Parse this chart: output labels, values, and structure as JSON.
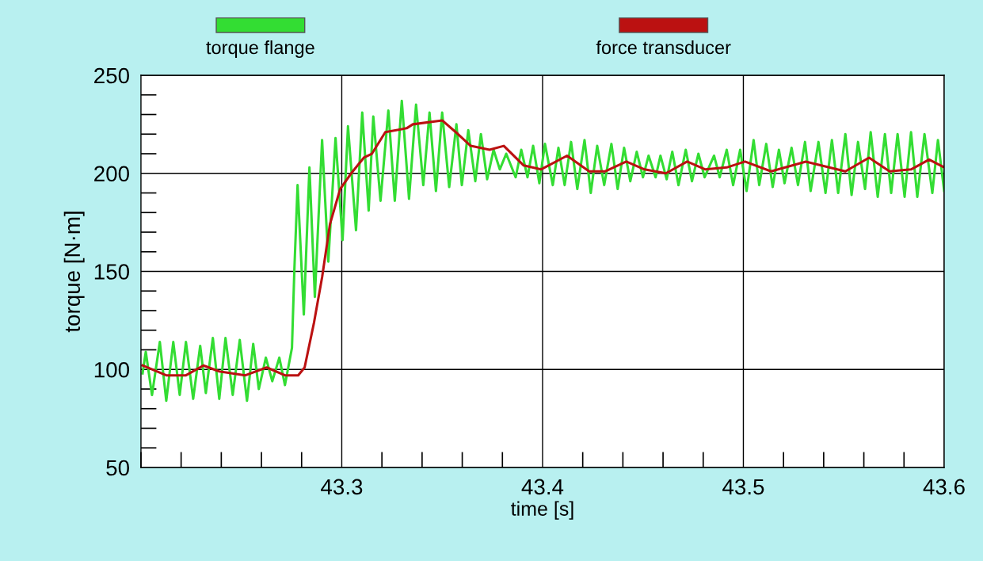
{
  "chart_data": {
    "type": "line",
    "xlabel": "time [s]",
    "ylabel": "torque [N·m]",
    "xlim": [
      43.2,
      43.6
    ],
    "xticks": [
      43.3,
      43.4,
      43.5,
      43.6
    ],
    "ylim": [
      50,
      250
    ],
    "yticks": [
      50,
      100,
      150,
      200,
      250
    ],
    "grid": true,
    "legend": "top",
    "line_style": "solid",
    "marker": "none",
    "series": [
      {
        "name": "torque flange",
        "color": "#33dd33",
        "x": [
          43.2008,
          43.2024,
          43.2055,
          43.2094,
          43.2126,
          43.2161,
          43.2193,
          43.2224,
          43.226,
          43.2295,
          43.2323,
          43.2358,
          43.239,
          43.2421,
          43.2457,
          43.2492,
          43.2528,
          43.2559,
          43.2587,
          43.2622,
          43.2654,
          43.2689,
          43.2717,
          43.2752,
          43.2764,
          43.278,
          43.2811,
          43.2839,
          43.2866,
          43.2902,
          43.2933,
          43.2969,
          43.3004,
          43.3031,
          43.3071,
          43.3102,
          43.3134,
          43.3157,
          43.3193,
          43.3232,
          43.3264,
          43.3299,
          43.3335,
          43.337,
          43.3406,
          43.3437,
          43.3469,
          43.35,
          43.3535,
          43.3571,
          43.3598,
          43.363,
          43.3665,
          43.3693,
          43.3724,
          43.3756,
          43.3787,
          43.3819,
          43.3866,
          43.3894,
          43.3925,
          43.3953,
          43.3984,
          43.4012,
          43.4051,
          43.4079,
          43.411,
          43.4142,
          43.4173,
          43.4209,
          43.424,
          43.4272,
          43.4307,
          43.4343,
          43.4374,
          43.4406,
          43.4437,
          43.4469,
          43.45,
          43.4528,
          43.4563,
          43.4587,
          43.4618,
          43.4646,
          43.4677,
          43.4713,
          43.4744,
          43.4776,
          43.4807,
          43.4854,
          43.4882,
          43.4917,
          43.4949,
          43.4984,
          43.5016,
          43.5051,
          43.5079,
          43.5114,
          43.5146,
          43.5177,
          43.5205,
          43.524,
          43.5272,
          43.5307,
          43.5335,
          43.5374,
          43.5409,
          43.5441,
          43.5472,
          43.5508,
          43.5539,
          43.5571,
          43.5606,
          43.5634,
          43.5669,
          43.5705,
          43.5736,
          43.5768,
          43.5803,
          43.5835,
          43.5866,
          43.5902,
          43.5941,
          43.5969,
          43.6
        ],
        "values": [
          98,
          109,
          87,
          114,
          84,
          114,
          87,
          114,
          85,
          112,
          88,
          116,
          85,
          116,
          87,
          115,
          84,
          113,
          90,
          106,
          94,
          106,
          92,
          111,
          151,
          194,
          128,
          203,
          137,
          217,
          155,
          218,
          166,
          224,
          171,
          231,
          181,
          229,
          186,
          232,
          186,
          237,
          187,
          235,
          194,
          231,
          191,
          231,
          193,
          225,
          194,
          222,
          196,
          220,
          197,
          212,
          202,
          210,
          198,
          212,
          198,
          214,
          195,
          215,
          194,
          213,
          194,
          216,
          192,
          217,
          190,
          214,
          194,
          215,
          192,
          213,
          196,
          211,
          198,
          209,
          198,
          209,
          197,
          211,
          194,
          212,
          196,
          210,
          198,
          209,
          198,
          212,
          194,
          212,
          191,
          217,
          194,
          215,
          193,
          212,
          195,
          213,
          194,
          216,
          191,
          216,
          190,
          217,
          190,
          220,
          189,
          216,
          192,
          221,
          188,
          220,
          190,
          220,
          188,
          221,
          188,
          220,
          190,
          217,
          191
        ]
      },
      {
        "name": "force transducer",
        "color": "#bb1111",
        "x": [
          43.2008,
          43.2126,
          43.2224,
          43.2311,
          43.239,
          43.252,
          43.2626,
          43.2717,
          43.2783,
          43.2815,
          43.2862,
          43.2902,
          43.2941,
          43.2992,
          43.3047,
          43.311,
          43.315,
          43.3217,
          43.3323,
          43.3354,
          43.35,
          43.3579,
          43.3642,
          43.3736,
          43.3807,
          43.3906,
          43.3992,
          43.4122,
          43.4232,
          43.4311,
          43.4417,
          43.4508,
          43.4614,
          43.472,
          43.4811,
          43.4917,
          43.5008,
          43.5138,
          43.5311,
          43.5508,
          43.5626,
          43.5728,
          43.5835,
          43.5925,
          43.6
        ],
        "values": [
          102,
          97,
          97,
          102,
          99,
          97,
          101,
          97,
          97,
          101,
          124,
          147,
          174,
          192,
          200,
          208,
          210,
          221,
          223,
          225,
          227,
          220,
          214,
          212,
          214,
          204,
          202,
          209,
          201,
          201,
          206,
          202,
          200,
          206,
          202,
          203,
          206,
          201,
          206,
          201,
          208,
          201,
          202,
          207,
          203
        ]
      }
    ]
  }
}
